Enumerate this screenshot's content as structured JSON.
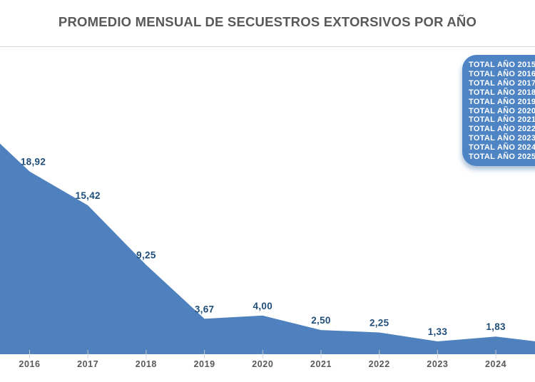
{
  "title": "PROMEDIO MENSUAL DE SECUESTROS EXTORSIVOS POR AÑO",
  "legend": {
    "items": [
      "TOTAL AÑO 2015",
      "TOTAL AÑO 2016",
      "TOTAL AÑO 2017",
      "TOTAL AÑO 2018",
      "TOTAL AÑO 2019",
      "TOTAL AÑO 2020",
      "TOTAL AÑO 2021",
      "TOTAL AÑO 2022",
      "TOTAL AÑO 2023",
      "TOTAL AÑO 2024",
      "TOTAL AÑO 2025"
    ]
  },
  "chart_data": {
    "type": "area",
    "title": "PROMEDIO MENSUAL DE SECUESTROS EXTORSIVOS POR AÑO",
    "categories": [
      "2016",
      "2017",
      "2018",
      "2019",
      "2020",
      "2021",
      "2022",
      "2023",
      "2024"
    ],
    "values": [
      18.92,
      15.42,
      9.25,
      3.67,
      4.0,
      2.5,
      2.25,
      1.33,
      1.83
    ],
    "value_labels": [
      "18,92",
      "15,42",
      "9,25",
      "3,67",
      "4,00",
      "2,50",
      "2,25",
      "1,33",
      "1,83"
    ],
    "xlabel": "",
    "ylabel": "",
    "ylim": [
      0,
      32
    ],
    "grid": false,
    "legend_position": "top-right",
    "clipped_edges": {
      "left_year": "2015",
      "left_value_estimate": 24.6,
      "right_year": "2025",
      "right_value_estimate": 1.1
    },
    "colors": {
      "series_fill": "#4E81BD",
      "data_label": "#1F4E79",
      "axis_label": "#595959",
      "legend_background": "#4E84C4",
      "legend_text": "#FFFFFF",
      "separator": "#D9D9D9",
      "tick": "#D0D0D0"
    }
  }
}
